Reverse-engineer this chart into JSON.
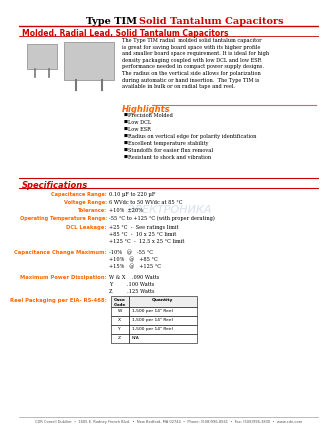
{
  "title_black": "Type TIM",
  "title_red": " Solid Tantalum Capacitors",
  "subtitle": "Molded, Radial Lead, Solid Tantalum Capacitors",
  "description": "The Type TIM radial  molded solid tantalum capacitor\nis great for saving board space with its higher profile\nand smaller board space requirement. It is ideal for high\ndensity packaging coupled with low DCL and low ESR\nperformance needed in compact power supply designs.\nThe radius on the vertical side allows for polarization\nduring automatic or hand insertion.  The Type TIM is\navailable in bulk or on radial tape and reel.",
  "highlights_title": "Highlights",
  "highlights": [
    "Precision Molded",
    "Low DCL",
    "Low ESR",
    "Radius on vertical edge for polarity identification",
    "Excellent temperature stability",
    "Standoffs for easier flux removal",
    "Resistant to shock and vibration"
  ],
  "specs_title": "Specifications",
  "specs": [
    [
      "Capacitance Range:",
      "0.10 µF to 220 µF"
    ],
    [
      "Voltage Range:",
      "6 WVdc to 50 WVdc at 85 °C"
    ],
    [
      "Tolerance:",
      "+10%  ±20%"
    ],
    [
      "Operating Temperature Range:",
      "-55 °C to +125 °C (with proper derating)"
    ]
  ],
  "dcl_title": "DCL Leakage:",
  "dcl_lines": [
    "+25 °C  -  See ratings limit",
    "+85 °C  -  10 x 25 °C limit",
    "+125 °C  -  12.5 x 25 °C limit"
  ],
  "cap_change_title": "Capacitance Change Maximum:",
  "cap_change_lines": [
    "-10%   @   -55 °C",
    "+10%   @   +85 °C",
    "+15%   @   +125 °C"
  ],
  "power_title": "Maximum Power Dissipation:",
  "power_lines": [
    "W & X    .090 Watts",
    "Y         .100 Watts",
    "Z         .125 Watts"
  ],
  "reel_title": "Reel Packaging per EIA- RS-468:",
  "table_rows": [
    [
      "W",
      "1,500 per 14\" Reel"
    ],
    [
      "X",
      "1,500 per 14\" Reel"
    ],
    [
      "Y",
      "1,500 per 14\" Reel"
    ],
    [
      "Z",
      "N/A"
    ]
  ],
  "footer": "CDR Cornell Dubilier  •  1605 E. Rodney French Blvd.  •  New Bedford, MA 02744  •  Phone: (508)996-8561  •  Fax: (508)996-3830  •  www.cde.com",
  "red_color": "#CC0000",
  "orange_color": "#FF6600",
  "bg_color": "#FFFFFF"
}
